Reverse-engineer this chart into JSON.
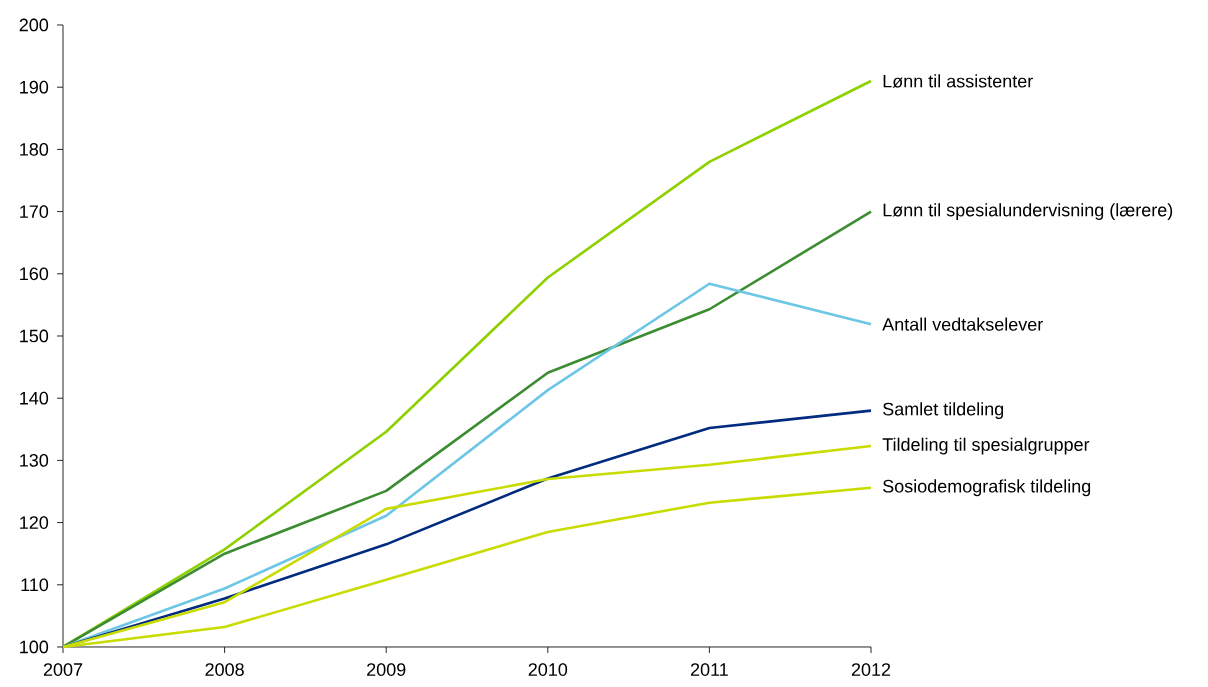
{
  "chart_data": {
    "type": "line",
    "x": [
      2007,
      2008,
      2009,
      2010,
      2011,
      2012
    ],
    "xlim": [
      2007,
      2012
    ],
    "xticks": [
      2007,
      2008,
      2009,
      2010,
      2011,
      2012
    ],
    "ylim": [
      100,
      200
    ],
    "yticks": [
      100,
      110,
      120,
      130,
      140,
      150,
      160,
      170,
      180,
      190,
      200
    ],
    "grid": false,
    "marker": "none",
    "line_style": "solid",
    "series": [
      {
        "name": "Lønn til assistenter",
        "color": "#8fd000",
        "values": [
          100,
          115.7,
          134.6,
          159.4,
          178.0,
          191.0
        ]
      },
      {
        "name": "Lønn til spesialundervisning (lærere)",
        "color": "#3c8c32",
        "values": [
          100,
          115.0,
          125.1,
          144.1,
          154.3,
          170.0
        ]
      },
      {
        "name": "Antall vedtakselever",
        "color": "#6ec6e6",
        "values": [
          100,
          109.4,
          121.1,
          141.3,
          158.4,
          151.9
        ]
      },
      {
        "name": "Samlet tildeling",
        "color": "#002b7f",
        "values": [
          100,
          107.8,
          116.5,
          127.1,
          135.2,
          138.0
        ]
      },
      {
        "name": "Tildeling til spesialgrupper",
        "color": "#c8dc00",
        "values": [
          100,
          107.2,
          122.2,
          127.0,
          129.3,
          132.3
        ]
      },
      {
        "name": "Sosiodemografisk tildeling",
        "color": "#c8dc00",
        "values": [
          100,
          103.2,
          110.8,
          118.5,
          123.2,
          125.6
        ]
      }
    ]
  }
}
